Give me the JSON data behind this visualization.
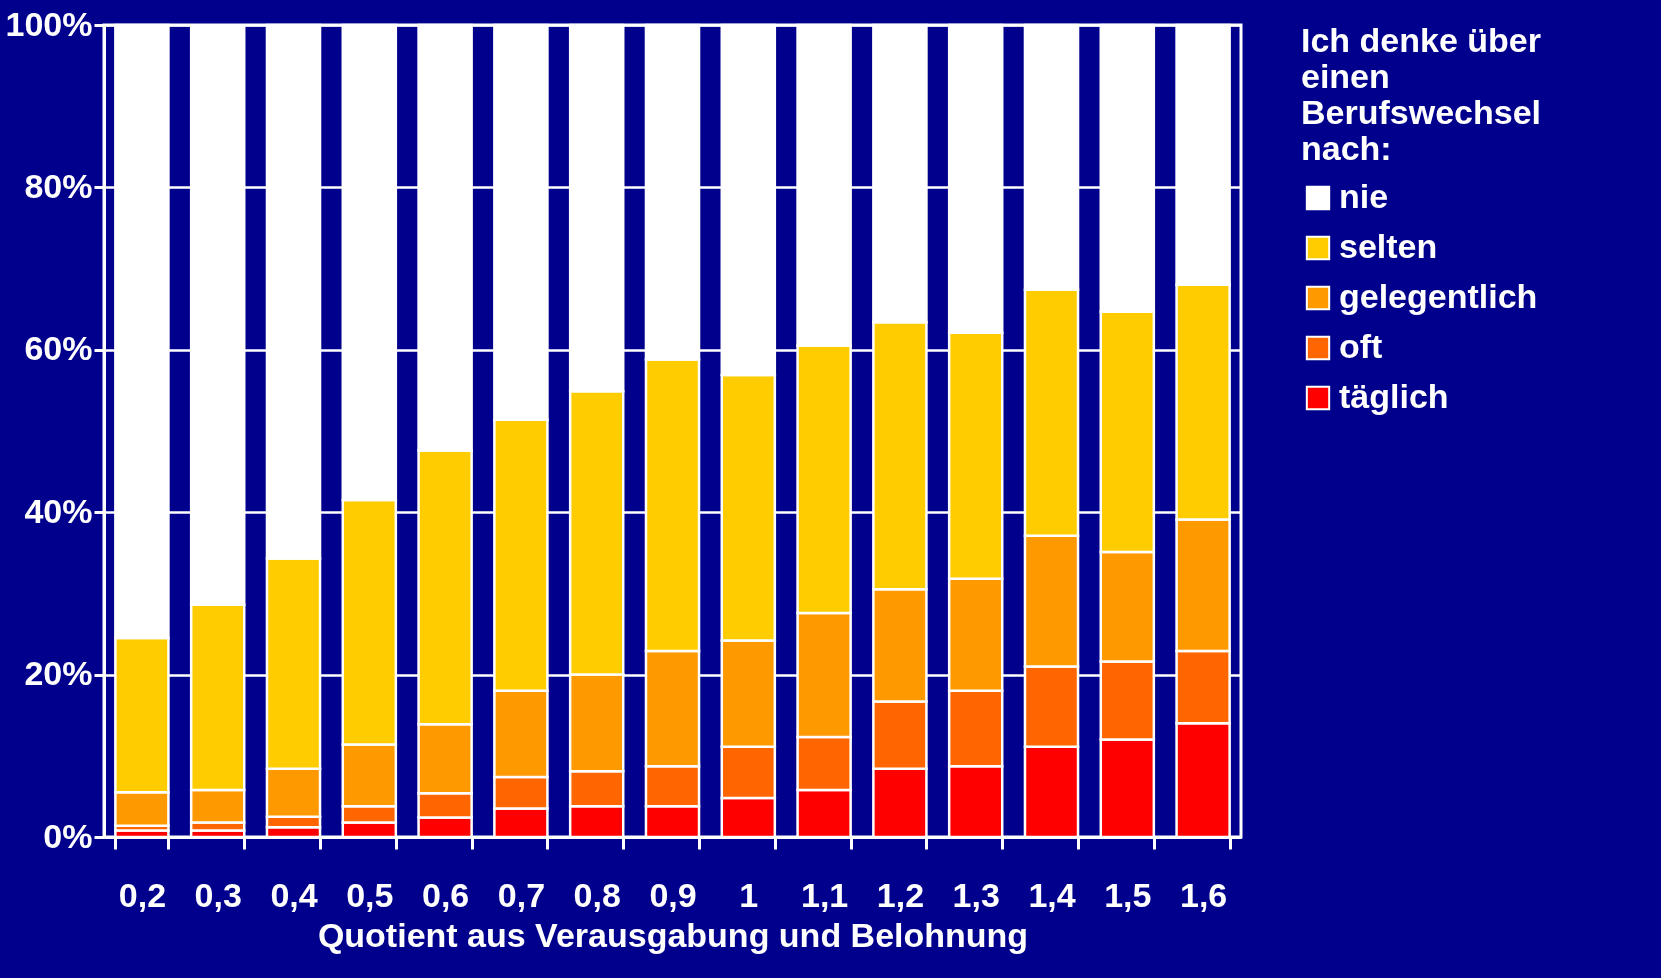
{
  "chart_data": {
    "type": "bar",
    "stacked": true,
    "xlabel": "Quotient aus Verausgabung und Belohnung",
    "legend_title": "Ich denke über einen Berufswechsel nach:",
    "legend": "right",
    "categories": [
      "0,2",
      "0,3",
      "0,4",
      "0,5",
      "0,6",
      "0,7",
      "0,8",
      "0,9",
      "1",
      "1,1",
      "1,2",
      "1,3",
      "1,4",
      "1,5",
      "1,6"
    ],
    "series": [
      {
        "name": "täglich",
        "color": "#ff0000",
        "values": [
          0.8,
          0.8,
          1.2,
          1.8,
          2.4,
          3.5,
          3.8,
          3.8,
          4.8,
          5.8,
          8.4,
          8.7,
          11.1,
          12.0,
          14.0
        ]
      },
      {
        "name": "oft",
        "color": "#ff6600",
        "values": [
          0.6,
          1.0,
          1.3,
          2.0,
          3.0,
          3.9,
          4.3,
          4.9,
          6.3,
          6.5,
          8.3,
          9.3,
          9.9,
          9.6,
          8.9
        ]
      },
      {
        "name": "gelegentlich",
        "color": "#ff9900",
        "values": [
          4.1,
          4.0,
          5.9,
          7.6,
          8.5,
          10.6,
          11.9,
          14.2,
          13.1,
          15.3,
          13.8,
          13.8,
          16.1,
          13.5,
          16.2
        ]
      },
      {
        "name": "selten",
        "color": "#ffcc00",
        "values": [
          19.0,
          22.8,
          25.9,
          30.1,
          33.7,
          33.4,
          34.9,
          35.9,
          32.7,
          32.9,
          32.9,
          30.3,
          30.3,
          29.6,
          28.9
        ]
      },
      {
        "name": "nie",
        "color": "#ffffff",
        "values": [
          75.5,
          71.3,
          65.7,
          58.5,
          52.4,
          48.6,
          45.1,
          41.2,
          43.1,
          39.5,
          36.6,
          37.9,
          32.6,
          35.3,
          32.0
        ]
      }
    ],
    "ylim": [
      0,
      100
    ],
    "yticks": [
      {
        "value": 0,
        "label": "0%"
      },
      {
        "value": 20,
        "label": "20%"
      },
      {
        "value": 40,
        "label": "40%"
      },
      {
        "value": 60,
        "label": "60%"
      },
      {
        "value": 80,
        "label": "80%"
      },
      {
        "value": 100,
        "label": "100%"
      }
    ],
    "grid": "y"
  }
}
